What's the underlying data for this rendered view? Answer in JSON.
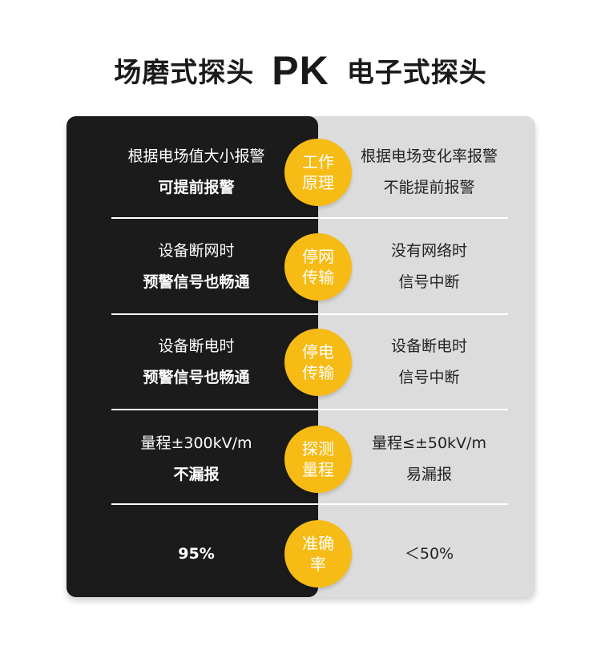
{
  "title": {
    "left": "场磨式探头",
    "vs": "PK",
    "right": "电子式探头"
  },
  "colors": {
    "left_panel": "#1b1b1b",
    "right_panel": "#dcdcdc",
    "badge": "#f6bb14"
  },
  "rows": [
    {
      "badge": [
        "工作",
        "原理"
      ],
      "left": [
        "根据电场值大小报警",
        "可提前报警"
      ],
      "right": [
        "根据电场变化率报警",
        "不能提前报警"
      ]
    },
    {
      "badge": [
        "停网",
        "传输"
      ],
      "left": [
        "设备断网时",
        "预警信号也畅通"
      ],
      "right": [
        "没有网络时",
        "信号中断"
      ]
    },
    {
      "badge": [
        "停电",
        "传输"
      ],
      "left": [
        "设备断电时",
        "预警信号也畅通"
      ],
      "right": [
        "设备断电时",
        "信号中断"
      ]
    },
    {
      "badge": [
        "探测",
        "量程"
      ],
      "left": [
        "量程±300kV/m",
        "不漏报"
      ],
      "right": [
        "量程≤±50kV/m",
        "易漏报"
      ]
    },
    {
      "badge": [
        "准确",
        "率"
      ],
      "left": [
        "95%"
      ],
      "right": [
        "＜50%"
      ]
    }
  ]
}
